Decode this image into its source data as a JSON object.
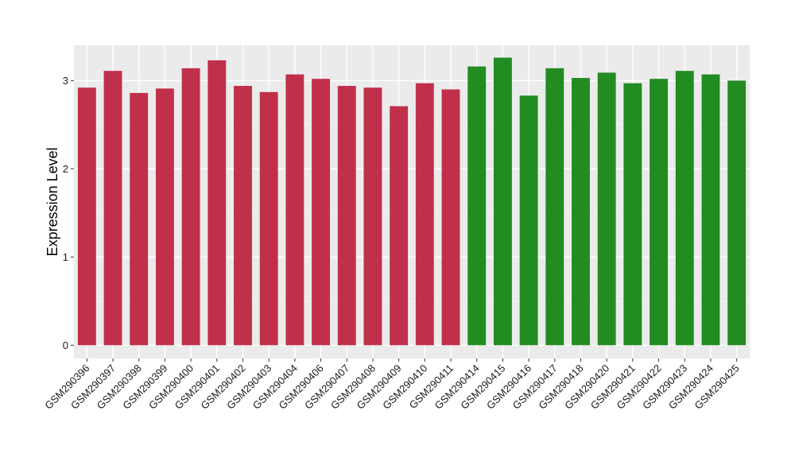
{
  "colors": {
    "panel_background": "#EBEBEB",
    "grid_major": "#FFFFFF",
    "grid_minor": "#F5F5F5",
    "group_a": "#C0304A",
    "group_b": "#228B22",
    "tick_text": "#1A1A1A"
  },
  "chart_data": {
    "type": "bar",
    "title": "",
    "xlabel": "",
    "ylabel": "Expression Level",
    "ylim": [
      -0.15,
      3.4
    ],
    "yticks": [
      0,
      1,
      2,
      3
    ],
    "grid": true,
    "legend": "none",
    "categories": [
      "GSM290396",
      "GSM290397",
      "GSM290398",
      "GSM290399",
      "GSM290400",
      "GSM290401",
      "GSM290402",
      "GSM290403",
      "GSM290404",
      "GSM290406",
      "GSM290407",
      "GSM290408",
      "GSM290409",
      "GSM290410",
      "GSM290411",
      "GSM290414",
      "GSM290415",
      "GSM290416",
      "GSM290417",
      "GSM290418",
      "GSM290420",
      "GSM290421",
      "GSM290422",
      "GSM290423",
      "GSM290424",
      "GSM290425"
    ],
    "values": [
      2.92,
      3.11,
      2.86,
      2.91,
      3.14,
      3.23,
      2.94,
      2.87,
      3.07,
      3.02,
      2.94,
      2.92,
      2.71,
      2.97,
      2.9,
      3.16,
      3.26,
      2.83,
      3.14,
      3.03,
      3.09,
      2.97,
      3.02,
      3.11,
      3.07,
      3.0
    ],
    "bar_colors": [
      "group_a",
      "group_a",
      "group_a",
      "group_a",
      "group_a",
      "group_a",
      "group_a",
      "group_a",
      "group_a",
      "group_a",
      "group_a",
      "group_a",
      "group_a",
      "group_a",
      "group_a",
      "group_b",
      "group_b",
      "group_b",
      "group_b",
      "group_b",
      "group_b",
      "group_b",
      "group_b",
      "group_b",
      "group_b",
      "group_b"
    ]
  }
}
